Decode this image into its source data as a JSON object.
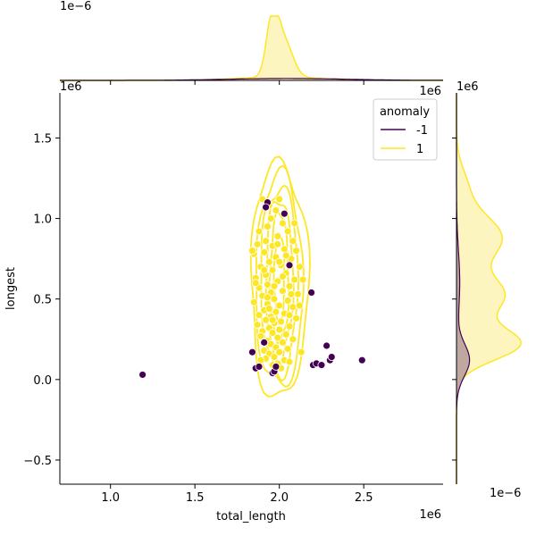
{
  "chart_data": {
    "type": "scatter",
    "title": "",
    "xlabel": "total_length",
    "ylabel": "longest",
    "x_offset_label": "1e6",
    "y_offset_label": "1e6",
    "xlim": [
      0.7,
      2.97
    ],
    "ylim": [
      -0.65,
      1.78
    ],
    "x_ticks": [
      1.0,
      1.5,
      2.0,
      2.5
    ],
    "x_tick_labels": [
      "1.0",
      "1.5",
      "2.0",
      "2.5"
    ],
    "y_ticks": [
      -0.5,
      0.0,
      0.5,
      1.0,
      1.5
    ],
    "y_tick_labels": [
      "−0.5",
      "0.0",
      "0.5",
      "1.0",
      "1.5"
    ],
    "top_marginal_offset_label": "1e−6",
    "right_marginal_offset_label": "1e−6",
    "legend": {
      "title": "anomaly",
      "location": "upper right",
      "entries": [
        {
          "label": "-1",
          "color": "#440154"
        },
        {
          "label": "1",
          "color": "#fde725"
        }
      ]
    },
    "colors": {
      "anomaly": "#440154",
      "normal": "#fde725",
      "normal_edge": "#ffffff",
      "normal_fill": "#fdf5bf",
      "anomaly_fill": "#bfa8a0"
    },
    "series": [
      {
        "name": "-1",
        "color": "#440154",
        "points": [
          [
            1.19,
            0.03
          ],
          [
            1.84,
            0.17
          ],
          [
            1.86,
            0.07
          ],
          [
            1.88,
            0.08
          ],
          [
            1.91,
            0.23
          ],
          [
            1.96,
            0.04
          ],
          [
            1.97,
            0.05
          ],
          [
            1.98,
            0.08
          ],
          [
            1.93,
            1.1
          ],
          [
            1.92,
            1.07
          ],
          [
            2.03,
            1.03
          ],
          [
            2.06,
            0.71
          ],
          [
            2.19,
            0.54
          ],
          [
            2.2,
            0.09
          ],
          [
            2.22,
            0.1
          ],
          [
            2.25,
            0.09
          ],
          [
            2.28,
            0.21
          ],
          [
            2.3,
            0.12
          ],
          [
            2.31,
            0.14
          ],
          [
            2.49,
            0.12
          ]
        ]
      },
      {
        "name": "1",
        "color": "#fde725",
        "points": [
          [
            1.9,
            1.12
          ],
          [
            1.94,
            1.08
          ],
          [
            1.98,
            1.05
          ],
          [
            2.0,
            1.12
          ],
          [
            1.95,
            1.0
          ],
          [
            2.02,
            0.97
          ],
          [
            1.93,
            0.95
          ],
          [
            1.88,
            0.92
          ],
          [
            2.05,
            0.92
          ],
          [
            1.99,
            0.89
          ],
          [
            1.92,
            0.86
          ],
          [
            2.08,
            0.86
          ],
          [
            1.87,
            0.84
          ],
          [
            1.96,
            0.83
          ],
          [
            2.03,
            0.81
          ],
          [
            1.91,
            0.79
          ],
          [
            2.1,
            0.8
          ],
          [
            1.85,
            0.78
          ],
          [
            1.98,
            0.76
          ],
          [
            2.07,
            0.75
          ],
          [
            1.94,
            0.73
          ],
          [
            2.01,
            0.71
          ],
          [
            1.89,
            0.7
          ],
          [
            2.12,
            0.7
          ],
          [
            1.96,
            0.68
          ],
          [
            2.04,
            0.66
          ],
          [
            1.92,
            0.65
          ],
          [
            1.86,
            0.63
          ],
          [
            2.09,
            0.62
          ],
          [
            1.99,
            0.61
          ],
          [
            1.93,
            0.59
          ],
          [
            2.06,
            0.58
          ],
          [
            1.88,
            0.57
          ],
          [
            2.02,
            0.55
          ],
          [
            1.95,
            0.54
          ],
          [
            2.11,
            0.53
          ],
          [
            1.9,
            0.52
          ],
          [
            1.97,
            0.5
          ],
          [
            2.05,
            0.49
          ],
          [
            1.85,
            0.48
          ],
          [
            1.93,
            0.47
          ],
          [
            2.0,
            0.46
          ],
          [
            2.08,
            0.45
          ],
          [
            1.91,
            0.43
          ],
          [
            1.98,
            0.42
          ],
          [
            2.03,
            0.41
          ],
          [
            1.88,
            0.4
          ],
          [
            1.95,
            0.39
          ],
          [
            2.1,
            0.38
          ],
          [
            1.92,
            0.37
          ],
          [
            2.01,
            0.36
          ],
          [
            1.97,
            0.35
          ],
          [
            1.87,
            0.34
          ],
          [
            2.06,
            0.33
          ],
          [
            1.94,
            0.32
          ],
          [
            2.0,
            0.31
          ],
          [
            1.9,
            0.3
          ],
          [
            1.96,
            0.29
          ],
          [
            2.04,
            0.28
          ],
          [
            1.89,
            0.27
          ],
          [
            1.99,
            0.26
          ],
          [
            2.08,
            0.25
          ],
          [
            1.93,
            0.24
          ],
          [
            2.02,
            0.23
          ],
          [
            1.95,
            0.22
          ],
          [
            1.98,
            0.2
          ],
          [
            2.05,
            0.19
          ],
          [
            1.91,
            0.18
          ],
          [
            2.0,
            0.17
          ],
          [
            1.94,
            0.16
          ],
          [
            2.13,
            0.17
          ],
          [
            1.97,
            0.14
          ],
          [
            2.03,
            0.12
          ],
          [
            1.92,
            0.13
          ],
          [
            1.99,
            0.1
          ],
          [
            2.01,
            0.07
          ],
          [
            1.96,
            0.09
          ],
          [
            2.06,
            0.11
          ],
          [
            1.89,
            0.12
          ],
          [
            2.14,
            0.62
          ],
          [
            1.86,
            0.6
          ],
          [
            2.12,
            0.46
          ],
          [
            1.84,
            0.8
          ],
          [
            2.09,
            0.97
          ],
          [
            1.97,
            0.58
          ],
          [
            2.02,
            0.64
          ],
          [
            1.94,
            0.44
          ],
          [
            2.07,
            0.53
          ],
          [
            1.91,
            0.68
          ],
          [
            2.04,
            0.77
          ],
          [
            1.99,
            0.84
          ],
          [
            1.93,
            0.51
          ],
          [
            2.0,
            0.73
          ],
          [
            1.96,
            0.37
          ],
          [
            2.06,
            0.4
          ]
        ]
      }
    ]
  }
}
